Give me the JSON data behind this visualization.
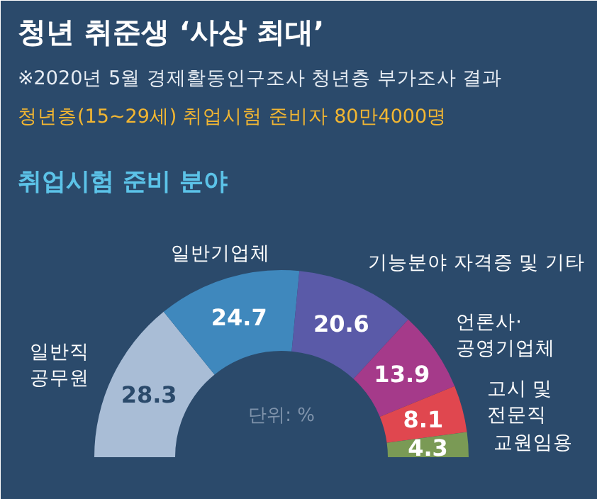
{
  "chart_data": {
    "type": "donut",
    "title": "청년 취준생 ‘사상 최대’",
    "subtitle": "※2020년 5월 경제활동인구조사 청년층 부가조사 결과",
    "annotations": [
      "청년층(15~29세) 취업시험 준비자 80만4000명",
      "취업시험 준비 분야",
      "단위: %"
    ],
    "categories": [
      "일반직\n공무원",
      "일반기업체",
      "기능분야 자격증 및 기타",
      "언론사·\n공영기업체",
      "고시 및\n전문직",
      "교원임용"
    ],
    "values": [
      28.3,
      24.7,
      20.6,
      13.9,
      8.1,
      4.3
    ],
    "colors": [
      "#a9bdd6",
      "#3f88bd",
      "#5a5aa8",
      "#a53a8a",
      "#e0474f",
      "#7a9a55"
    ],
    "data_labels": true
  }
}
